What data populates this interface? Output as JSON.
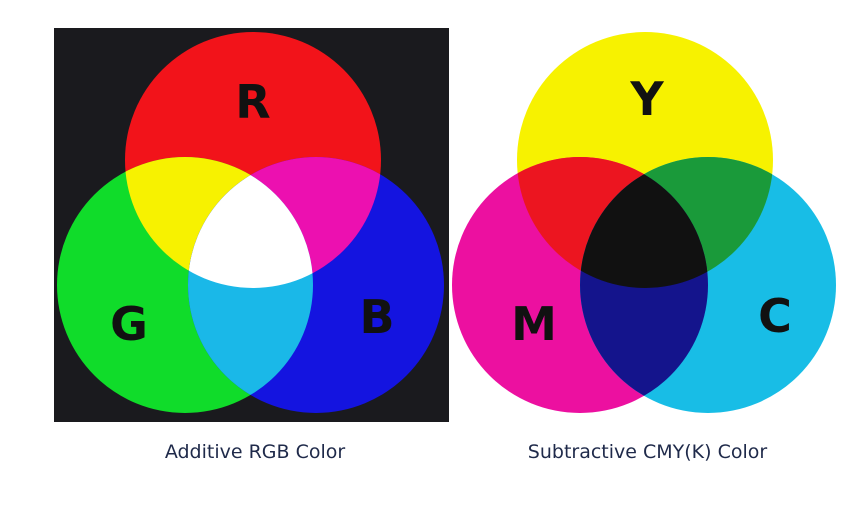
{
  "additive": {
    "caption": "Additive RGB Color",
    "labels": {
      "r": "R",
      "g": "G",
      "b": "B"
    },
    "colors": {
      "background": "#1a1a1e",
      "red": "#f2131a",
      "green": "#10dc2a",
      "blue": "#1414e0",
      "red_green": "#f7f200",
      "red_blue": "#ec10b0",
      "green_blue": "#1ab8e8",
      "all": "#ffffff"
    }
  },
  "subtractive": {
    "caption": "Subtractive CMY(K) Color",
    "labels": {
      "y": "Y",
      "m": "M",
      "c": "C"
    },
    "colors": {
      "yellow": "#f7f200",
      "magenta": "#ec10a0",
      "cyan": "#18bde6",
      "yellow_magenta": "#ec1520",
      "yellow_cyan": "#1a9a3a",
      "magenta_cyan": "#14148c",
      "all": "#111111"
    }
  }
}
